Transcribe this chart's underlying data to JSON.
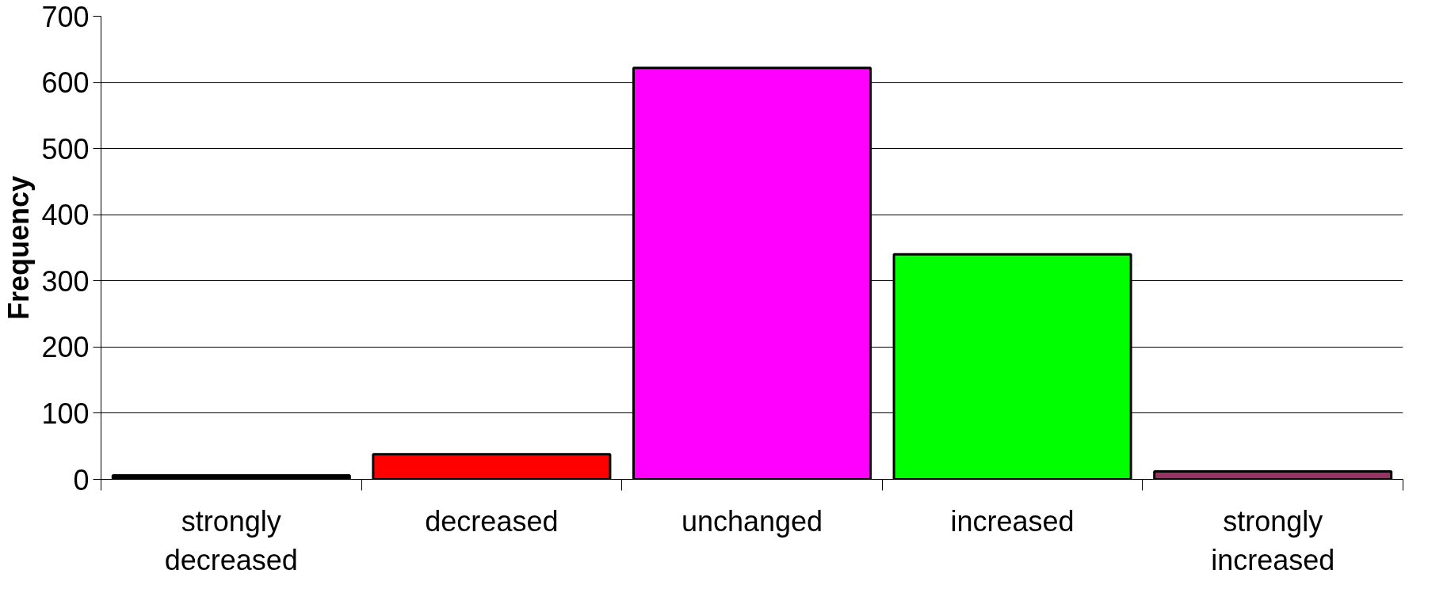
{
  "chart_data": {
    "type": "bar",
    "ylabel": "Frequency",
    "categories": [
      "strongly decreased",
      "decreased",
      "unchanged",
      "increased",
      "strongly increased"
    ],
    "values": [
      6,
      38,
      622,
      340,
      12
    ],
    "colors": [
      "#000000",
      "#ff0000",
      "#ff00ff",
      "#00ff00",
      "#993366"
    ],
    "ylim": [
      0,
      700
    ],
    "yticks": [
      0,
      100,
      200,
      300,
      400,
      500,
      600,
      700
    ],
    "grid": "y"
  }
}
